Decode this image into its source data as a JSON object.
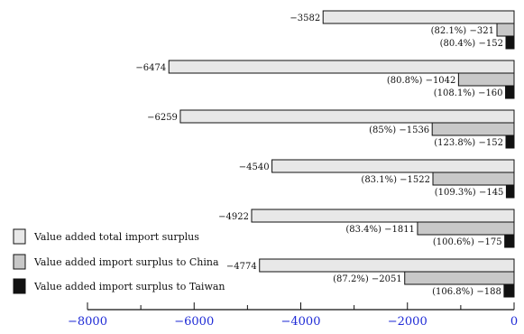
{
  "chart_data": {
    "type": "bar",
    "orientation": "horizontal",
    "xlim": [
      -8000,
      0
    ],
    "xticks": [
      -8000,
      -6000,
      -4000,
      -2000,
      0
    ],
    "xtick_labels": [
      "−8000",
      "−6000",
      "−4000",
      "−2000",
      "0"
    ],
    "series": [
      {
        "name": "Value added total import surplus",
        "color": "#e8e8e8",
        "values": [
          -3582,
          -6474,
          -6259,
          -4540,
          -4922,
          -4774
        ],
        "labels": [
          "−3582",
          "−6474",
          "−6259",
          "−4540",
          "−4922",
          "−4774"
        ]
      },
      {
        "name": "Value added import surplus to China",
        "color": "#c8c8c8",
        "values": [
          -321,
          -1042,
          -1536,
          -1522,
          -1811,
          -2051
        ],
        "labels": [
          "−321",
          "−1042",
          "−1536",
          "−1522",
          "−1811",
          "−2051"
        ],
        "pct_labels": [
          "(82.1%)",
          "(80.8%)",
          "(85%)",
          "(83.1%)",
          "(83.4%)",
          "(87.2%)"
        ]
      },
      {
        "name": "Value added import surplus to Taiwan",
        "color": "#111111",
        "values": [
          -152,
          -160,
          -152,
          -145,
          -175,
          -188
        ],
        "labels": [
          "−152",
          "−160",
          "−152",
          "−145",
          "−175",
          "−188"
        ],
        "pct_labels": [
          "(80.4%)",
          "(108.1%)",
          "(123.8%)",
          "(109.3%)",
          "(100.6%)",
          "(106.8%)"
        ]
      }
    ],
    "legend_position": "bottom-left"
  }
}
